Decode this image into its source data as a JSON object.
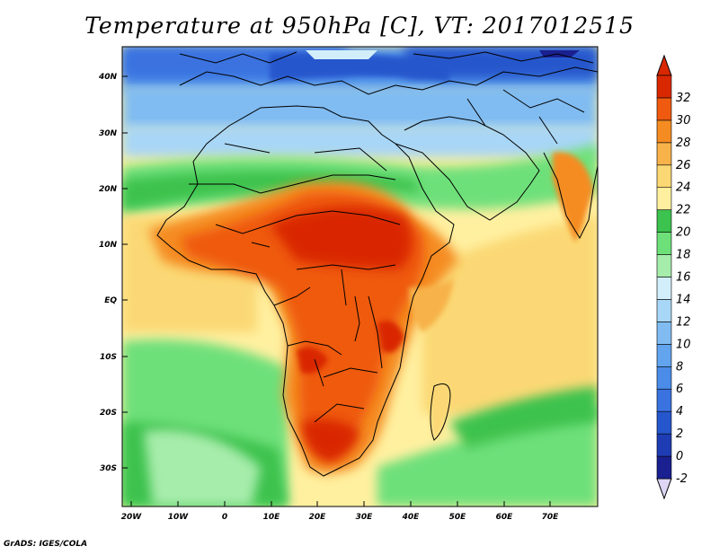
{
  "title": "Temperature at 950hPa [C], VT: 2017012515",
  "credit": "GrADS: IGES/COLA",
  "lat_labels": [
    "40N",
    "30N",
    "20N",
    "10N",
    "EQ",
    "10S",
    "20S",
    "30S"
  ],
  "lon_labels": [
    "20W",
    "10W",
    "0",
    "10E",
    "20E",
    "30E",
    "40E",
    "50E",
    "60E",
    "70E"
  ],
  "colorbar": {
    "labels": [
      "-2",
      "0",
      "2",
      "4",
      "6",
      "8",
      "10",
      "12",
      "14",
      "16",
      "18",
      "20",
      "22",
      "24",
      "26",
      "28",
      "30",
      "32"
    ],
    "colors": [
      "#1a2090",
      "#1e3cb4",
      "#2556cc",
      "#3a72e0",
      "#4a8ce8",
      "#62a4ee",
      "#80bcf2",
      "#a8d6f6",
      "#d2eefa",
      "#a6ecaa",
      "#6ee07a",
      "#3cc24e",
      "#fff0a0",
      "#fbd874",
      "#f7b24a",
      "#f58c22",
      "#ef5a10",
      "#d92800"
    ]
  },
  "legend": {
    "ocean_warm": "#fbd874",
    "ocean_mid": "#fff0a0",
    "ocean_cool": "#6ee07a",
    "land_hot": "#ef5a10",
    "land_hottest": "#d92800",
    "north_cold": "#4a8ce8"
  }
}
